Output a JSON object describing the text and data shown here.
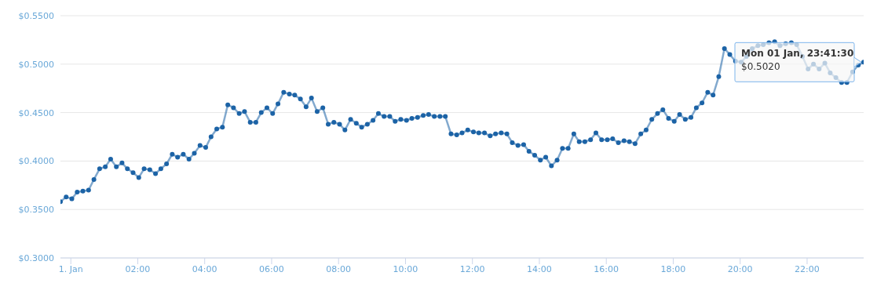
{
  "chart_data": {
    "type": "line",
    "x": [
      -0.31,
      -0.14,
      0.03,
      0.19,
      0.36,
      0.53,
      0.69,
      0.86,
      1.03,
      1.19,
      1.36,
      1.53,
      1.69,
      1.86,
      2.03,
      2.19,
      2.36,
      2.53,
      2.69,
      2.86,
      3.03,
      3.19,
      3.36,
      3.53,
      3.69,
      3.86,
      4.03,
      4.19,
      4.36,
      4.53,
      4.69,
      4.86,
      5.03,
      5.19,
      5.36,
      5.53,
      5.69,
      5.86,
      6.03,
      6.19,
      6.36,
      6.53,
      6.69,
      6.86,
      7.03,
      7.19,
      7.36,
      7.53,
      7.69,
      7.86,
      8.03,
      8.19,
      8.36,
      8.53,
      8.69,
      8.86,
      9.03,
      9.19,
      9.36,
      9.53,
      9.69,
      9.86,
      10.03,
      10.19,
      10.36,
      10.53,
      10.69,
      10.86,
      11.03,
      11.19,
      11.36,
      11.53,
      11.69,
      11.86,
      12.03,
      12.19,
      12.36,
      12.53,
      12.69,
      12.86,
      13.03,
      13.19,
      13.36,
      13.53,
      13.69,
      13.86,
      14.03,
      14.19,
      14.36,
      14.53,
      14.69,
      14.86,
      15.03,
      15.19,
      15.36,
      15.53,
      15.69,
      15.86,
      16.03,
      16.19,
      16.36,
      16.53,
      16.69,
      16.86,
      17.03,
      17.19,
      17.36,
      17.53,
      17.69,
      17.86,
      18.03,
      18.19,
      18.36,
      18.53,
      18.69,
      18.86,
      19.03,
      19.19,
      19.36,
      19.53,
      19.69,
      19.86,
      20.03,
      20.19,
      20.36,
      20.53,
      20.69,
      20.86,
      21.03,
      21.19,
      21.36,
      21.53,
      21.69,
      21.86,
      22.03,
      22.19,
      22.36,
      22.53,
      22.69,
      22.86,
      23.03,
      23.19,
      23.36,
      23.53,
      23.69
    ],
    "series": [
      {
        "color": "#1c63a6",
        "values": [
          0.358,
          0.363,
          0.361,
          0.368,
          0.369,
          0.37,
          0.381,
          0.392,
          0.394,
          0.402,
          0.394,
          0.398,
          0.392,
          0.388,
          0.383,
          0.392,
          0.391,
          0.387,
          0.392,
          0.397,
          0.407,
          0.404,
          0.407,
          0.402,
          0.408,
          0.416,
          0.414,
          0.425,
          0.433,
          0.435,
          0.458,
          0.455,
          0.449,
          0.451,
          0.44,
          0.44,
          0.45,
          0.455,
          0.449,
          0.459,
          0.471,
          0.469,
          0.468,
          0.464,
          0.456,
          0.465,
          0.451,
          0.455,
          0.438,
          0.44,
          0.438,
          0.432,
          0.443,
          0.439,
          0.435,
          0.438,
          0.442,
          0.449,
          0.446,
          0.446,
          0.441,
          0.443,
          0.442,
          0.444,
          0.445,
          0.447,
          0.448,
          0.446,
          0.446,
          0.446,
          0.428,
          0.427,
          0.429,
          0.432,
          0.43,
          0.429,
          0.429,
          0.426,
          0.428,
          0.429,
          0.428,
          0.419,
          0.416,
          0.417,
          0.41,
          0.406,
          0.401,
          0.404,
          0.395,
          0.401,
          0.413,
          0.413,
          0.428,
          0.42,
          0.42,
          0.422,
          0.429,
          0.422,
          0.422,
          0.423,
          0.419,
          0.421,
          0.42,
          0.418,
          0.428,
          0.432,
          0.443,
          0.449,
          0.453,
          0.444,
          0.441,
          0.448,
          0.443,
          0.445,
          0.455,
          0.46,
          0.471,
          0.468,
          0.487,
          0.516,
          0.51,
          0.503,
          0.502,
          0.508,
          0.516,
          0.519,
          0.52,
          0.522,
          0.523,
          0.519,
          0.521,
          0.522,
          0.52,
          0.508,
          0.495,
          0.5,
          0.495,
          0.501,
          0.491,
          0.486,
          0.481,
          0.481,
          0.492,
          0.499,
          0.502
        ]
      }
    ],
    "xlim": [
      -0.31,
      23.69
    ],
    "xticks": [
      {
        "value": 0,
        "label": "1. Jan"
      },
      {
        "value": 2,
        "label": "02:00"
      },
      {
        "value": 4,
        "label": "04:00"
      },
      {
        "value": 6,
        "label": "06:00"
      },
      {
        "value": 8,
        "label": "08:00"
      },
      {
        "value": 10,
        "label": "10:00"
      },
      {
        "value": 12,
        "label": "12:00"
      },
      {
        "value": 14,
        "label": "14:00"
      },
      {
        "value": 16,
        "label": "16:00"
      },
      {
        "value": 18,
        "label": "18:00"
      },
      {
        "value": 20,
        "label": "20:00"
      },
      {
        "value": 22,
        "label": "22:00"
      }
    ],
    "ylim": [
      0.3,
      0.55
    ],
    "yticks": [
      {
        "value": 0.3,
        "label": "$0.3000"
      },
      {
        "value": 0.35,
        "label": "$0.3500"
      },
      {
        "value": 0.4,
        "label": "$0.4000"
      },
      {
        "value": 0.45,
        "label": "$0.4500"
      },
      {
        "value": 0.5,
        "label": "$0.5000"
      },
      {
        "value": 0.55,
        "label": "$0.5500"
      }
    ],
    "grid": "y",
    "marker": "circle",
    "line_style": "solid",
    "legend": false,
    "annotations": [
      {
        "text": "Mon 01 Jan, 23:41:30\n$0.5020",
        "x": 23.69,
        "y": 0.502
      }
    ]
  }
}
